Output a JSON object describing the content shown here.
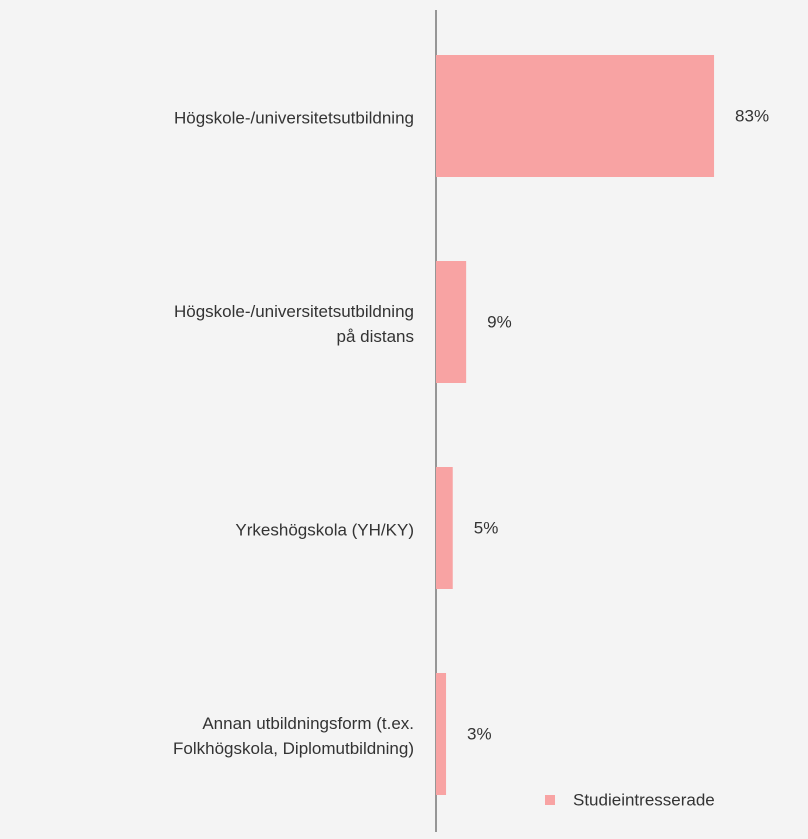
{
  "chart_data": {
    "type": "hbar",
    "categories": [
      "Högskole-/universitetsutbildning",
      "Högskole-/universitetsutbildning\npå distans",
      "Yrkeshögskola (YH/KY)",
      "Annan utbildningsform (t.ex.\nFolkhögskola, Diplomutbildning)"
    ],
    "series": [
      {
        "name": "Studieintresserade",
        "color": "#f8a3a3",
        "values": [
          83,
          9,
          5,
          3
        ],
        "value_labels": [
          "83%",
          "9%",
          "5%",
          "3%"
        ]
      }
    ],
    "xlim": [
      0,
      100
    ],
    "legend": "bottom-right"
  }
}
